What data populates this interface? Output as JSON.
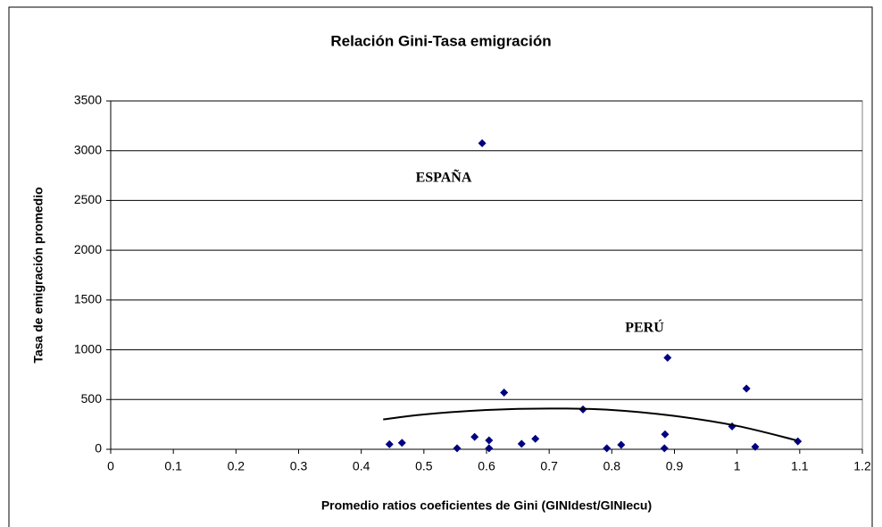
{
  "chart_data": {
    "type": "scatter",
    "title": "Relación Gini-Tasa emigración",
    "xlabel": "Promedio ratios coeficientes de Gini (GINIdest/GINIecu)",
    "ylabel": "Tasa de emigración promedio",
    "xlim": [
      0,
      1.2
    ],
    "ylim": [
      0,
      3500
    ],
    "xticks": [
      0,
      0.1,
      0.2,
      0.3,
      0.4,
      0.5,
      0.6,
      0.7,
      0.8,
      0.9,
      1,
      1.1,
      1.2
    ],
    "yticks": [
      0,
      500,
      1000,
      1500,
      2000,
      2500,
      3000,
      3500
    ],
    "grid": true,
    "series": [
      {
        "color": "#000080",
        "x": [
          0.445,
          0.465,
          0.553,
          0.581,
          0.593,
          0.604,
          0.604,
          0.628,
          0.656,
          0.678,
          0.754,
          0.792,
          0.815,
          0.884,
          0.885,
          0.889,
          0.992,
          1.015,
          1.029,
          1.097
        ],
        "values": [
          50,
          65,
          10,
          125,
          3075,
          90,
          10,
          570,
          55,
          105,
          400,
          10,
          45,
          10,
          150,
          920,
          230,
          610,
          25,
          80
        ]
      },
      {
        "color": "#000000",
        "x": [
          0.435,
          0.5,
          0.6,
          0.7,
          0.8,
          0.9,
          1.0,
          1.095
        ],
        "values": [
          300,
          350,
          395,
          410,
          395,
          335,
          235,
          90
        ]
      }
    ],
    "annotations": [
      "ESPAÑA",
      "PERÚ"
    ]
  }
}
